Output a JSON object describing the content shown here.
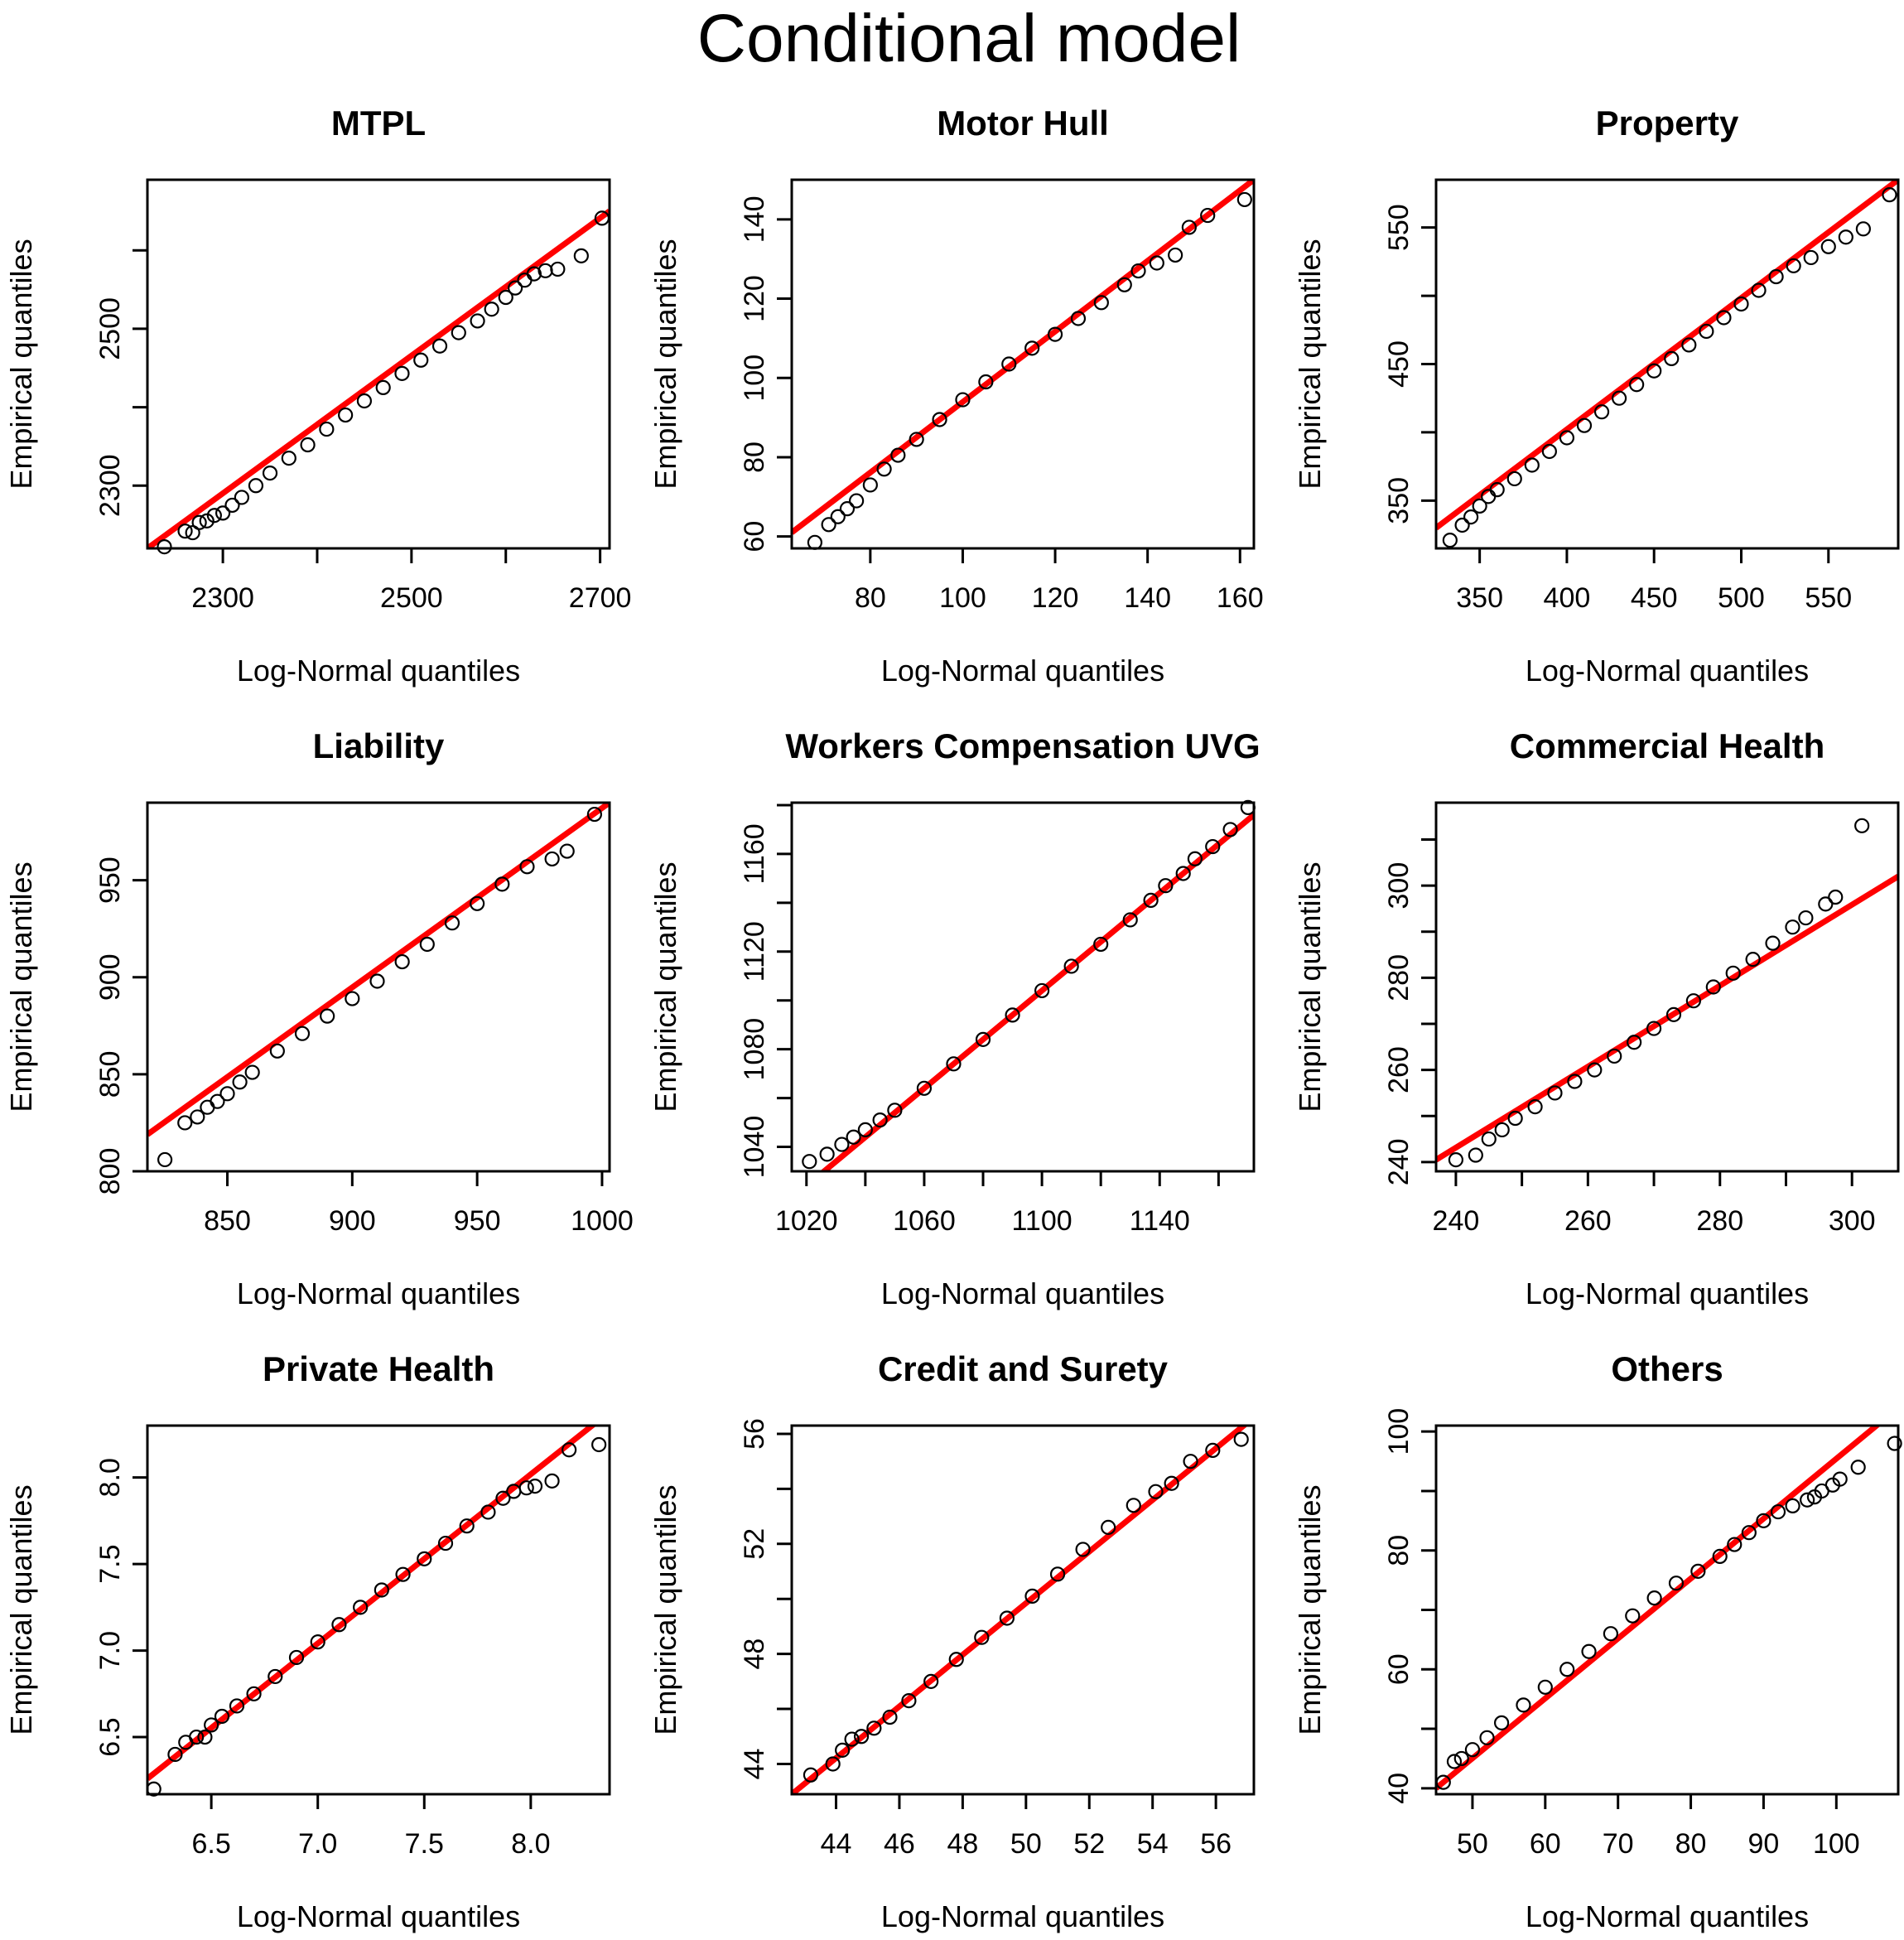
{
  "figure_title": "Conditional model",
  "colors": {
    "reference_line": "#ff0000",
    "points": "#000000",
    "background": "#ffffff"
  },
  "chart_data": [
    {
      "type": "scatter",
      "title": "MTPL",
      "xlabel": "Log-Normal quantiles",
      "ylabel": "Empirical quantiles",
      "xlim": [
        2220,
        2710
      ],
      "ylim": [
        2220,
        2690
      ],
      "xticks": [
        2300,
        2400,
        2500,
        2600,
        2700
      ],
      "xtick_labels": [
        "2300",
        "",
        "2500",
        "",
        "2700"
      ],
      "yticks": [
        2300,
        2400,
        2500,
        2600
      ],
      "ytick_labels": [
        "2300",
        "",
        "2500",
        ""
      ],
      "ref_line": [
        [
          2220,
          2220
        ],
        [
          2710,
          2650
        ]
      ],
      "points": [
        [
          2238,
          2222
        ],
        [
          2260,
          2242
        ],
        [
          2268,
          2240
        ],
        [
          2275,
          2253
        ],
        [
          2283,
          2255
        ],
        [
          2291,
          2262
        ],
        [
          2300,
          2265
        ],
        [
          2310,
          2275
        ],
        [
          2320,
          2285
        ],
        [
          2335,
          2300
        ],
        [
          2350,
          2316
        ],
        [
          2370,
          2335
        ],
        [
          2390,
          2352
        ],
        [
          2410,
          2372
        ],
        [
          2430,
          2390
        ],
        [
          2450,
          2408
        ],
        [
          2470,
          2425
        ],
        [
          2490,
          2443
        ],
        [
          2510,
          2460
        ],
        [
          2530,
          2478
        ],
        [
          2550,
          2495
        ],
        [
          2570,
          2510
        ],
        [
          2585,
          2525
        ],
        [
          2600,
          2540
        ],
        [
          2610,
          2552
        ],
        [
          2620,
          2562
        ],
        [
          2630,
          2570
        ],
        [
          2642,
          2574
        ],
        [
          2655,
          2576
        ],
        [
          2680,
          2593
        ],
        [
          2702,
          2641
        ]
      ]
    },
    {
      "type": "scatter",
      "title": "Motor Hull",
      "xlabel": "Log-Normal quantiles",
      "ylabel": "Empirical quantiles",
      "xlim": [
        63,
        163
      ],
      "ylim": [
        57,
        150
      ],
      "xticks": [
        80,
        100,
        120,
        140,
        160
      ],
      "xtick_labels": [
        "80",
        "100",
        "120",
        "140",
        "160"
      ],
      "yticks": [
        60,
        80,
        100,
        120,
        140
      ],
      "ytick_labels": [
        "60",
        "80",
        "100",
        "120",
        "140"
      ],
      "ref_line": [
        [
          63,
          61
        ],
        [
          163,
          150
        ]
      ],
      "points": [
        [
          68,
          58.5
        ],
        [
          71,
          63
        ],
        [
          73,
          65
        ],
        [
          75,
          67
        ],
        [
          77,
          69
        ],
        [
          80,
          73
        ],
        [
          83,
          77
        ],
        [
          86,
          80.5
        ],
        [
          90,
          84.5
        ],
        [
          95,
          89.5
        ],
        [
          100,
          94.5
        ],
        [
          105,
          99
        ],
        [
          110,
          103.5
        ],
        [
          115,
          107.5
        ],
        [
          120,
          111
        ],
        [
          125,
          115
        ],
        [
          130,
          119
        ],
        [
          135,
          123.5
        ],
        [
          138,
          127
        ],
        [
          142,
          129
        ],
        [
          146,
          131
        ],
        [
          149,
          138
        ],
        [
          153,
          141
        ],
        [
          161,
          145
        ]
      ]
    },
    {
      "type": "scatter",
      "title": "Property",
      "xlabel": "Log-Normal quantiles",
      "ylabel": "Empirical quantiles",
      "xlim": [
        325,
        590
      ],
      "ylim": [
        315,
        585
      ],
      "xticks": [
        350,
        400,
        450,
        500,
        550
      ],
      "xtick_labels": [
        "350",
        "400",
        "450",
        "500",
        "550"
      ],
      "yticks": [
        350,
        400,
        450,
        500,
        550
      ],
      "ytick_labels": [
        "350",
        "",
        "450",
        "",
        "550"
      ],
      "ref_line": [
        [
          325,
          330
        ],
        [
          590,
          585
        ]
      ],
      "points": [
        [
          333,
          321
        ],
        [
          340,
          332
        ],
        [
          345,
          338
        ],
        [
          350,
          346
        ],
        [
          355,
          353
        ],
        [
          360,
          358
        ],
        [
          370,
          366
        ],
        [
          380,
          376
        ],
        [
          390,
          386
        ],
        [
          400,
          396
        ],
        [
          410,
          405
        ],
        [
          420,
          415
        ],
        [
          430,
          425
        ],
        [
          440,
          435
        ],
        [
          450,
          445
        ],
        [
          460,
          454
        ],
        [
          470,
          464
        ],
        [
          480,
          474
        ],
        [
          490,
          484
        ],
        [
          500,
          494
        ],
        [
          510,
          504
        ],
        [
          520,
          514
        ],
        [
          530,
          522
        ],
        [
          540,
          528
        ],
        [
          550,
          536
        ],
        [
          560,
          543
        ],
        [
          570,
          549
        ],
        [
          585,
          574
        ]
      ]
    },
    {
      "type": "scatter",
      "title": "Liability",
      "xlabel": "Log-Normal quantiles",
      "ylabel": "Empirical quantiles",
      "xlim": [
        818,
        1003
      ],
      "ylim": [
        800,
        990
      ],
      "xticks": [
        850,
        900,
        950,
        1000
      ],
      "xtick_labels": [
        "850",
        "900",
        "950",
        "1000"
      ],
      "yticks": [
        800,
        850,
        900,
        950
      ],
      "ytick_labels": [
        "800",
        "850",
        "900",
        "950"
      ],
      "ref_line": [
        [
          818,
          819
        ],
        [
          1003,
          990
        ]
      ],
      "points": [
        [
          825,
          806
        ],
        [
          833,
          825
        ],
        [
          838,
          828
        ],
        [
          842,
          833
        ],
        [
          846,
          836
        ],
        [
          850,
          840
        ],
        [
          855,
          846
        ],
        [
          860,
          851
        ],
        [
          870,
          862
        ],
        [
          880,
          871
        ],
        [
          890,
          880
        ],
        [
          900,
          889
        ],
        [
          910,
          898
        ],
        [
          920,
          908
        ],
        [
          930,
          917
        ],
        [
          940,
          928
        ],
        [
          950,
          938
        ],
        [
          960,
          948
        ],
        [
          970,
          957
        ],
        [
          980,
          961
        ],
        [
          986,
          965
        ],
        [
          997,
          984
        ]
      ]
    },
    {
      "type": "scatter",
      "title": "Workers Compensation UVG",
      "xlabel": "Log-Normal quantiles",
      "ylabel": "Empirical quantiles",
      "xlim": [
        1015,
        1172
      ],
      "ylim": [
        1030,
        1181
      ],
      "xticks": [
        1020,
        1040,
        1060,
        1080,
        1100,
        1120,
        1140,
        1160
      ],
      "xtick_labels": [
        "1020",
        "",
        "1060",
        "",
        "1100",
        "",
        "1140",
        ""
      ],
      "yticks": [
        1040,
        1060,
        1080,
        1100,
        1120,
        1140,
        1160,
        1180
      ],
      "ytick_labels": [
        "1040",
        "",
        "1080",
        "",
        "1120",
        "",
        "1160",
        ""
      ],
      "ref_line": [
        [
          1015,
          1019
        ],
        [
          1172,
          1176
        ]
      ],
      "points": [
        [
          1021,
          1034
        ],
        [
          1027,
          1037
        ],
        [
          1032,
          1041
        ],
        [
          1036,
          1044
        ],
        [
          1040,
          1047
        ],
        [
          1045,
          1051
        ],
        [
          1050,
          1055
        ],
        [
          1060,
          1064
        ],
        [
          1070,
          1074
        ],
        [
          1080,
          1084
        ],
        [
          1090,
          1094
        ],
        [
          1100,
          1104
        ],
        [
          1110,
          1114
        ],
        [
          1120,
          1123
        ],
        [
          1130,
          1133
        ],
        [
          1137,
          1141
        ],
        [
          1142,
          1147
        ],
        [
          1148,
          1152
        ],
        [
          1152,
          1158
        ],
        [
          1158,
          1163
        ],
        [
          1164,
          1170
        ],
        [
          1170,
          1179
        ]
      ]
    },
    {
      "type": "scatter",
      "title": "Commercial Health",
      "xlabel": "Log-Normal quantiles",
      "ylabel": "Empirical quantiles",
      "xlim": [
        237,
        307
      ],
      "ylim": [
        238,
        318
      ],
      "xticks": [
        240,
        250,
        260,
        270,
        280,
        290,
        300
      ],
      "xtick_labels": [
        "240",
        "",
        "260",
        "",
        "280",
        "",
        "300"
      ],
      "yticks": [
        240,
        250,
        260,
        270,
        280,
        290,
        300,
        310
      ],
      "ytick_labels": [
        "240",
        "",
        "260",
        "",
        "280",
        "",
        "300",
        ""
      ],
      "ref_line": [
        [
          237,
          240.5
        ],
        [
          307,
          302
        ]
      ],
      "points": [
        [
          240,
          240.5
        ],
        [
          243,
          241.5
        ],
        [
          245,
          245
        ],
        [
          247,
          247
        ],
        [
          249,
          249.5
        ],
        [
          252,
          252
        ],
        [
          255,
          255
        ],
        [
          258,
          257.5
        ],
        [
          261,
          260
        ],
        [
          264,
          263
        ],
        [
          267,
          266
        ],
        [
          270,
          269
        ],
        [
          273,
          272
        ],
        [
          276,
          275
        ],
        [
          279,
          278
        ],
        [
          282,
          281
        ],
        [
          285,
          284
        ],
        [
          288,
          287.5
        ],
        [
          291,
          291
        ],
        [
          293,
          293
        ],
        [
          296,
          296
        ],
        [
          297.5,
          297.5
        ],
        [
          301.5,
          313
        ]
      ]
    },
    {
      "type": "scatter",
      "title": "Private Health",
      "xlabel": "Log-Normal quantiles",
      "ylabel": "Empirical quantiles",
      "xlim": [
        6.2,
        8.37
      ],
      "ylim": [
        6.17,
        8.3
      ],
      "xticks": [
        6.5,
        7.0,
        7.5,
        8.0
      ],
      "xtick_labels": [
        "6.5",
        "7.0",
        "7.5",
        "8.0"
      ],
      "yticks": [
        6.5,
        7.0,
        7.5,
        8.0
      ],
      "ytick_labels": [
        "6.5",
        "7.0",
        "7.5",
        "8.0"
      ],
      "ref_line": [
        [
          6.2,
          6.26
        ],
        [
          8.37,
          8.38
        ]
      ],
      "points": [
        [
          6.23,
          6.2
        ],
        [
          6.33,
          6.4
        ],
        [
          6.38,
          6.47
        ],
        [
          6.43,
          6.5
        ],
        [
          6.47,
          6.5
        ],
        [
          6.5,
          6.57
        ],
        [
          6.55,
          6.62
        ],
        [
          6.62,
          6.68
        ],
        [
          6.7,
          6.75
        ],
        [
          6.8,
          6.85
        ],
        [
          6.9,
          6.96
        ],
        [
          7.0,
          7.05
        ],
        [
          7.1,
          7.15
        ],
        [
          7.2,
          7.25
        ],
        [
          7.3,
          7.35
        ],
        [
          7.4,
          7.44
        ],
        [
          7.5,
          7.53
        ],
        [
          7.6,
          7.62
        ],
        [
          7.7,
          7.72
        ],
        [
          7.8,
          7.8
        ],
        [
          7.87,
          7.88
        ],
        [
          7.92,
          7.92
        ],
        [
          7.98,
          7.94
        ],
        [
          8.02,
          7.95
        ],
        [
          8.1,
          7.98
        ],
        [
          8.18,
          8.16
        ],
        [
          8.32,
          8.19
        ]
      ]
    },
    {
      "type": "scatter",
      "title": "Credit and Surety",
      "xlabel": "Log-Normal quantiles",
      "ylabel": "Empirical quantiles",
      "xlim": [
        42.6,
        57.2
      ],
      "ylim": [
        42.9,
        56.3
      ],
      "xticks": [
        44,
        46,
        48,
        50,
        52,
        54,
        56
      ],
      "xtick_labels": [
        "44",
        "46",
        "48",
        "50",
        "52",
        "54",
        "56"
      ],
      "yticks": [
        44,
        46,
        48,
        50,
        52,
        54,
        56
      ],
      "ytick_labels": [
        "44",
        "",
        "48",
        "",
        "52",
        "",
        "56"
      ],
      "ref_line": [
        [
          42.6,
          42.9
        ],
        [
          57.2,
          56.6
        ]
      ],
      "points": [
        [
          43.2,
          43.6
        ],
        [
          43.9,
          44
        ],
        [
          44.2,
          44.5
        ],
        [
          44.5,
          44.9
        ],
        [
          44.8,
          45
        ],
        [
          45.2,
          45.3
        ],
        [
          45.7,
          45.7
        ],
        [
          46.3,
          46.3
        ],
        [
          47,
          47
        ],
        [
          47.8,
          47.8
        ],
        [
          48.6,
          48.6
        ],
        [
          49.4,
          49.3
        ],
        [
          50.2,
          50.1
        ],
        [
          51,
          50.9
        ],
        [
          51.8,
          51.8
        ],
        [
          52.6,
          52.6
        ],
        [
          53.4,
          53.4
        ],
        [
          54.1,
          53.9
        ],
        [
          54.6,
          54.2
        ],
        [
          55.2,
          55
        ],
        [
          55.9,
          55.4
        ],
        [
          56.8,
          55.8
        ]
      ]
    },
    {
      "type": "scatter",
      "title": "Others",
      "xlabel": "Log-Normal quantiles",
      "ylabel": "Empirical quantiles",
      "xlim": [
        45,
        108.5
      ],
      "ylim": [
        39,
        101
      ],
      "xticks": [
        50,
        60,
        70,
        80,
        90,
        100
      ],
      "xtick_labels": [
        "50",
        "60",
        "70",
        "80",
        "90",
        "100"
      ],
      "yticks": [
        40,
        50,
        60,
        70,
        80,
        90,
        100
      ],
      "ytick_labels": [
        "40",
        "",
        "60",
        "",
        "80",
        "",
        "100"
      ],
      "ref_line": [
        [
          45,
          40
        ],
        [
          108.5,
          104
        ]
      ],
      "points": [
        [
          46,
          41
        ],
        [
          47.5,
          44.5
        ],
        [
          48.5,
          45
        ],
        [
          50,
          46.5
        ],
        [
          52,
          48.5
        ],
        [
          54,
          51
        ],
        [
          57,
          54
        ],
        [
          60,
          57
        ],
        [
          63,
          60
        ],
        [
          66,
          63
        ],
        [
          69,
          66
        ],
        [
          72,
          69
        ],
        [
          75,
          72
        ],
        [
          78,
          74.5
        ],
        [
          81,
          76.5
        ],
        [
          84,
          79
        ],
        [
          86,
          81
        ],
        [
          88,
          83
        ],
        [
          90,
          85
        ],
        [
          92,
          86.5
        ],
        [
          94,
          87.5
        ],
        [
          96,
          88.5
        ],
        [
          97,
          89
        ],
        [
          98,
          90
        ],
        [
          99.5,
          91
        ],
        [
          100.5,
          92
        ],
        [
          103,
          94
        ],
        [
          108,
          98
        ]
      ]
    }
  ]
}
